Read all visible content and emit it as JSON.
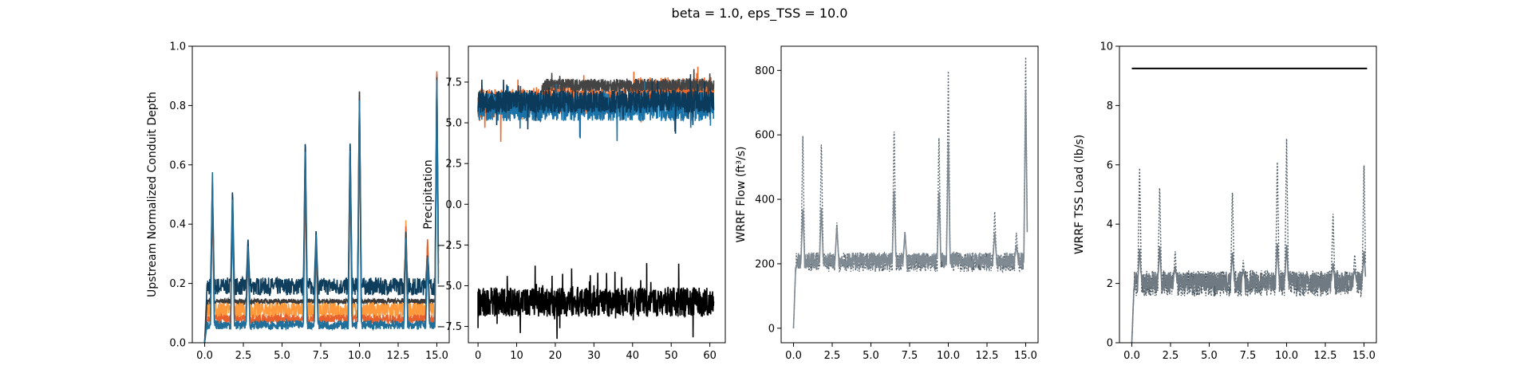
{
  "figure": {
    "title": "beta = 1.0, eps_TSS = 10.0"
  },
  "chart_data": [
    {
      "type": "line",
      "title": "",
      "xlabel": "",
      "ylabel": "Upstream Normalized Conduit Depth",
      "xlim": [
        -0.8,
        15.8
      ],
      "ylim": [
        0.0,
        1.0
      ],
      "xticks": [
        "0.0",
        "2.5",
        "5.0",
        "7.5",
        "10.0",
        "12.5",
        "15.0"
      ],
      "yticks": [
        "0.0",
        "0.2",
        "0.4",
        "0.6",
        "0.8",
        "1.0"
      ],
      "grid": false,
      "colors": [
        "#0f3d5c",
        "#ff9a3c",
        "#e8602c",
        "#3a3a3a",
        "#1f6f9a"
      ],
      "series": [
        {
          "color": "#0f3d5c",
          "base": 0.19,
          "jitter": 0.03,
          "x": [
            0.0,
            0.5,
            1.8,
            2.8,
            6.5,
            7.2,
            9.4,
            10.0,
            13.0,
            14.4,
            15.0
          ],
          "peaks": [
            0.55,
            0.52,
            0.35,
            0.7,
            0.38,
            0.69,
            0.84,
            0.35,
            0.33,
            0.91
          ]
        },
        {
          "color": "#ff9a3c",
          "base": 0.11,
          "jitter": 0.03,
          "x": [
            0.0,
            0.5,
            1.8,
            2.8,
            6.5,
            7.2,
            9.4,
            10.0,
            13.0,
            14.4,
            15.0
          ],
          "peaks": [
            0.5,
            0.45,
            0.3,
            0.6,
            0.33,
            0.62,
            0.8,
            0.42,
            0.34,
            0.85
          ]
        },
        {
          "color": "#e8602c",
          "base": 0.08,
          "jitter": 0.015,
          "x": [
            0.0,
            0.5,
            1.8,
            2.8,
            6.5,
            7.2,
            9.4,
            10.0,
            13.0,
            14.4,
            15.0
          ],
          "peaks": [
            0.48,
            0.44,
            0.3,
            0.58,
            0.32,
            0.6,
            0.85,
            0.4,
            0.36,
            0.92
          ]
        },
        {
          "color": "#3a3a3a",
          "base": 0.14,
          "jitter": 0.008,
          "x": [
            0.0,
            0.5,
            1.8,
            2.8,
            6.5,
            7.2,
            9.4,
            10.0,
            13.0,
            14.4,
            15.0
          ],
          "peaks": [
            0.5,
            0.48,
            0.3,
            0.65,
            0.35,
            0.66,
            0.85,
            0.38,
            0.3,
            0.9
          ]
        },
        {
          "color": "#1f6f9a",
          "base": 0.06,
          "jitter": 0.015,
          "x": [
            0.0,
            0.5,
            1.8,
            2.8,
            6.5,
            7.2,
            9.4,
            10.0,
            13.0,
            14.4,
            15.0
          ],
          "peaks": [
            0.59,
            0.5,
            0.33,
            0.68,
            0.37,
            0.67,
            0.82,
            0.36,
            0.3,
            0.89
          ]
        }
      ]
    },
    {
      "type": "line",
      "title": "",
      "xlabel": "",
      "ylabel": "Precipitation",
      "xlim": [
        -2.5,
        64.0
      ],
      "ylim": [
        -8.5,
        9.7
      ],
      "xticks": [
        "0",
        "10",
        "20",
        "30",
        "40",
        "50",
        "60"
      ],
      "yticks": [
        "−7.5",
        "−5.0",
        "−2.5",
        "0.0",
        "2.5",
        "5.0",
        "7.5"
      ],
      "grid": false,
      "series": [
        {
          "color": "#f06a2a",
          "segments": [
            {
              "x": [
                0,
                16.5
              ],
              "level": 6.2
            },
            {
              "x": [
                16.5,
                40
              ],
              "level": 6.4
            },
            {
              "x": [
                40,
                61
              ],
              "level": 6.9
            }
          ],
          "jitter": 0.9
        },
        {
          "color": "#444444",
          "segments": [
            {
              "x": [
                0,
                16.5
              ],
              "level": 6.4
            },
            {
              "x": [
                16.5,
                40
              ],
              "level": 7.3
            },
            {
              "x": [
                40,
                61
              ],
              "level": 7.3
            }
          ],
          "jitter": 0.4
        },
        {
          "color": "#1a73a8",
          "segments": [
            {
              "x": [
                0,
                61
              ],
              "level": 6.0
            }
          ],
          "jitter": 0.9
        },
        {
          "color": "#0c3a5a",
          "segments": [
            {
              "x": [
                0,
                61
              ],
              "level": 6.3
            }
          ],
          "jitter": 0.7
        },
        {
          "color": "#000000",
          "segments": [
            {
              "x": [
                0,
                61
              ],
              "level": -6.0
            }
          ],
          "jitter": 0.9,
          "start": -7.6
        }
      ]
    },
    {
      "type": "line",
      "title": "",
      "xlabel": "",
      "ylabel": "WRRF Flow (ft³/s)",
      "xlim": [
        -0.8,
        15.8
      ],
      "ylim": [
        -45,
        875
      ],
      "xticks": [
        "0.0",
        "2.5",
        "5.0",
        "7.5",
        "10.0",
        "12.5",
        "15.0"
      ],
      "yticks": [
        "0",
        "200",
        "400",
        "600",
        "800"
      ],
      "grid": false,
      "series": [
        {
          "color": "#5a6670",
          "dashed": true,
          "base": 205,
          "jitter": 30,
          "x": [
            0.6,
            1.8,
            2.8,
            6.5,
            7.2,
            9.4,
            10.0,
            13.0,
            14.4,
            15.0
          ],
          "peaks": [
            610,
            585,
            330,
            635,
            300,
            605,
            800,
            365,
            300,
            845
          ]
        },
        {
          "color": "#7f8a93",
          "dashed": false,
          "base": 210,
          "jitter": 25,
          "x": [
            0.6,
            1.8,
            2.8,
            6.5,
            7.2,
            9.4,
            10.0,
            13.0,
            14.4,
            15.0
          ],
          "peaks": [
            375,
            380,
            320,
            440,
            300,
            430,
            580,
            300,
            260,
            740
          ]
        }
      ]
    },
    {
      "type": "line",
      "title": "",
      "xlabel": "",
      "ylabel": "WRRF TSS Load (lb/s)",
      "xlim": [
        -0.8,
        15.8
      ],
      "ylim": [
        0,
        10
      ],
      "xticks": [
        "0.0",
        "2.5",
        "5.0",
        "7.5",
        "10.0",
        "12.5",
        "15.0"
      ],
      "yticks": [
        "0",
        "2",
        "4",
        "6",
        "8",
        "10"
      ],
      "grid": false,
      "threshold": {
        "value": 9.25,
        "x": [
          0,
          15.2
        ],
        "color": "#000000"
      },
      "series": [
        {
          "color": "#4d5a63",
          "dashed": true,
          "base": 2.0,
          "jitter": 0.45,
          "x": [
            0.5,
            1.8,
            2.8,
            6.5,
            7.2,
            9.4,
            10.0,
            13.0,
            14.4,
            15.0
          ],
          "peaks": [
            6.0,
            5.35,
            3.1,
            5.25,
            2.8,
            6.25,
            6.9,
            4.4,
            3.0,
            6.0
          ]
        },
        {
          "color": "#6f7a83",
          "dashed": false,
          "base": 2.05,
          "jitter": 0.35,
          "x": [
            0.5,
            1.8,
            2.8,
            6.5,
            7.2,
            9.4,
            10.0,
            13.0,
            14.4,
            15.0
          ],
          "peaks": [
            3.2,
            3.3,
            2.6,
            3.1,
            2.5,
            3.4,
            3.3,
            2.7,
            2.5,
            3.1
          ]
        }
      ]
    }
  ]
}
